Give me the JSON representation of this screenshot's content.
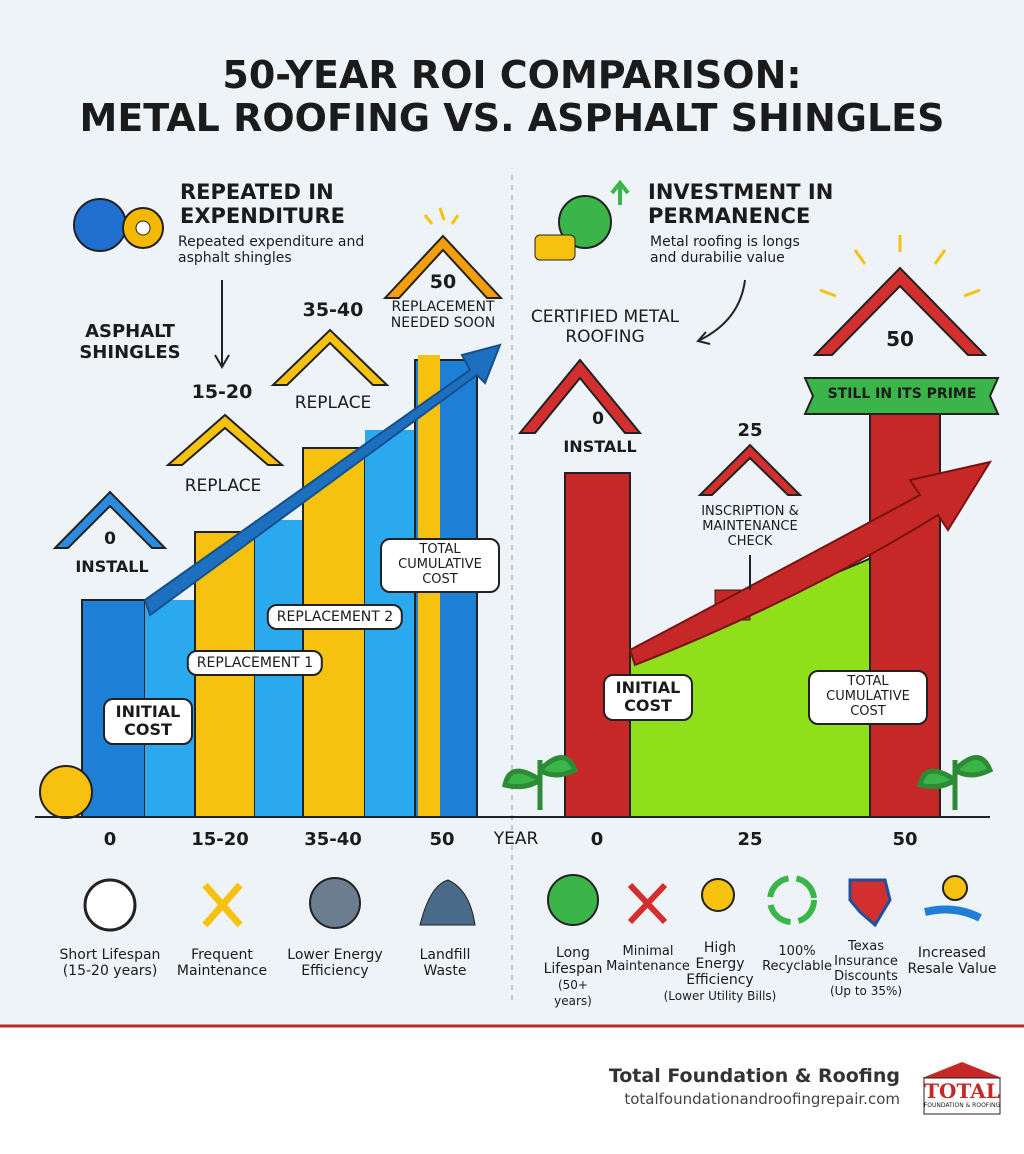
{
  "header": {
    "title_lines": [
      "50-YEAR ROI COMPARISON:",
      "METAL ROOFING VS. ASPHALT SHINGLES"
    ]
  },
  "left": {
    "heading": "REPEATED IN EXPENDITURE",
    "subtext": "Repeated expenditure and asphalt shingles",
    "label": "ASPHALT SHINGLES",
    "houses": [
      {
        "year": "0",
        "label": "INSTALL"
      },
      {
        "year": "15-20",
        "label": "REPLACE"
      },
      {
        "year": "35-40",
        "label": "REPLACE"
      },
      {
        "year": "50",
        "label": "REPLACEMENT NEEDED SOON"
      }
    ],
    "callouts": [
      "INITIAL COST",
      "REPLACEMENT 1",
      "REPLACEMENT 2",
      "TOTAL CUMULATIVE COST"
    ],
    "axis_labels": [
      "0",
      "15-20",
      "35-40",
      "50"
    ],
    "features": [
      {
        "label": "Short Lifespan (15-20 years)"
      },
      {
        "label": "Frequent Maintenance"
      },
      {
        "label": "Lower Energy Efficiency"
      },
      {
        "label": "Landfill Waste"
      }
    ]
  },
  "axis_title": "YEAR",
  "right": {
    "heading": "INVESTMENT IN PERMANENCE",
    "subtext": "Metal roofing is longs and durabilie value",
    "label": "CERTIFIED METAL ROOFING",
    "houses": [
      {
        "year": "0",
        "label": "INSTALL"
      },
      {
        "year": "25",
        "label": "INSCRIPTION & MAINTENANCE CHECK"
      },
      {
        "year": "50",
        "label": "STILL IN ITS PRIME"
      }
    ],
    "callouts": [
      "INITIAL COST",
      "TOTAL CUMULATIVE COST"
    ],
    "axis_labels": [
      "0",
      "25",
      "50"
    ],
    "features": [
      {
        "label": "Long Lifespan",
        "note": "(50+ years)"
      },
      {
        "label": "Minimal Maintenance"
      },
      {
        "label": "High Energy Efficiency",
        "note": "(Lower Utility Bills)"
      },
      {
        "label": "100% Recyclable"
      },
      {
        "label": "Texas Insurance Discounts",
        "note": "(Up to 35%)"
      },
      {
        "label": "Increased Resale Value"
      }
    ]
  },
  "footer": {
    "company": "Total Foundation & Roofing",
    "url": "totalfoundationandroofingrepair.com",
    "logo": "TOTAL",
    "logo_sub": "FOUNDATION & ROOFING"
  }
}
